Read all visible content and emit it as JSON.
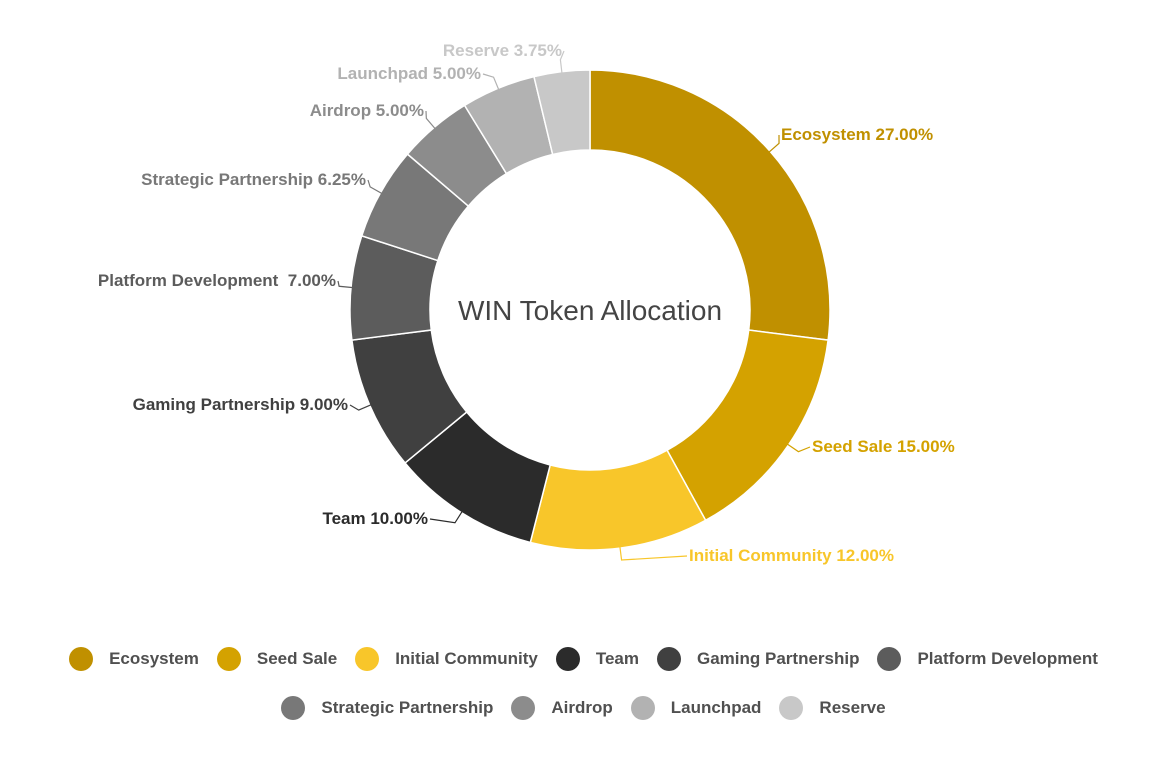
{
  "chart_data": {
    "type": "pie",
    "donut": true,
    "title": "WIN Token Allocation",
    "categories": [
      "Ecosystem",
      "Seed Sale",
      "Initial Community",
      "Team",
      "Gaming Partnership",
      "Platform Development",
      "Strategic Partnership",
      "Airdrop",
      "Launchpad",
      "Reserve"
    ],
    "values": [
      27.0,
      15.0,
      12.0,
      10.0,
      9.0,
      7.0,
      6.25,
      5.0,
      5.0,
      3.75
    ],
    "colors": [
      "#c09000",
      "#d4a200",
      "#f8c62a",
      "#2b2b2b",
      "#404040",
      "#5c5c5c",
      "#787878",
      "#8c8c8c",
      "#b2b2b2",
      "#c8c8c8"
    ],
    "label_colors": [
      "#c09000",
      "#d4a200",
      "#f8c62a",
      "#2b2b2b",
      "#404040",
      "#5c5c5c",
      "#787878",
      "#8c8c8c",
      "#b2b2b2",
      "#c8c8c8"
    ],
    "data_labels": [
      "Ecosystem 27.00%",
      "Seed Sale 15.00%",
      "Initial Community 12.00%",
      "Team 10.00%",
      "Gaming Partnership 9.00%",
      "Platform Development  7.00%",
      "Strategic Partnership 6.25%",
      "Airdrop 5.00%",
      "Launchpad 5.00%",
      "Reserve 3.75%"
    ],
    "legend_position": "bottom",
    "unit": "%"
  },
  "legend": {
    "row1": [
      {
        "label": "Ecosystem",
        "color": "#c09000"
      },
      {
        "label": "Seed Sale",
        "color": "#d4a200"
      },
      {
        "label": "Initial Community",
        "color": "#f8c62a"
      },
      {
        "label": "Team",
        "color": "#2b2b2b"
      },
      {
        "label": "Gaming Partnership",
        "color": "#404040"
      },
      {
        "label": "Platform Development",
        "color": "#5c5c5c"
      }
    ],
    "row2": [
      {
        "label": "Strategic Partnership",
        "color": "#787878"
      },
      {
        "label": "Airdrop",
        "color": "#8c8c8c"
      },
      {
        "label": "Launchpad",
        "color": "#b2b2b2"
      },
      {
        "label": "Reserve",
        "color": "#c8c8c8"
      }
    ]
  }
}
